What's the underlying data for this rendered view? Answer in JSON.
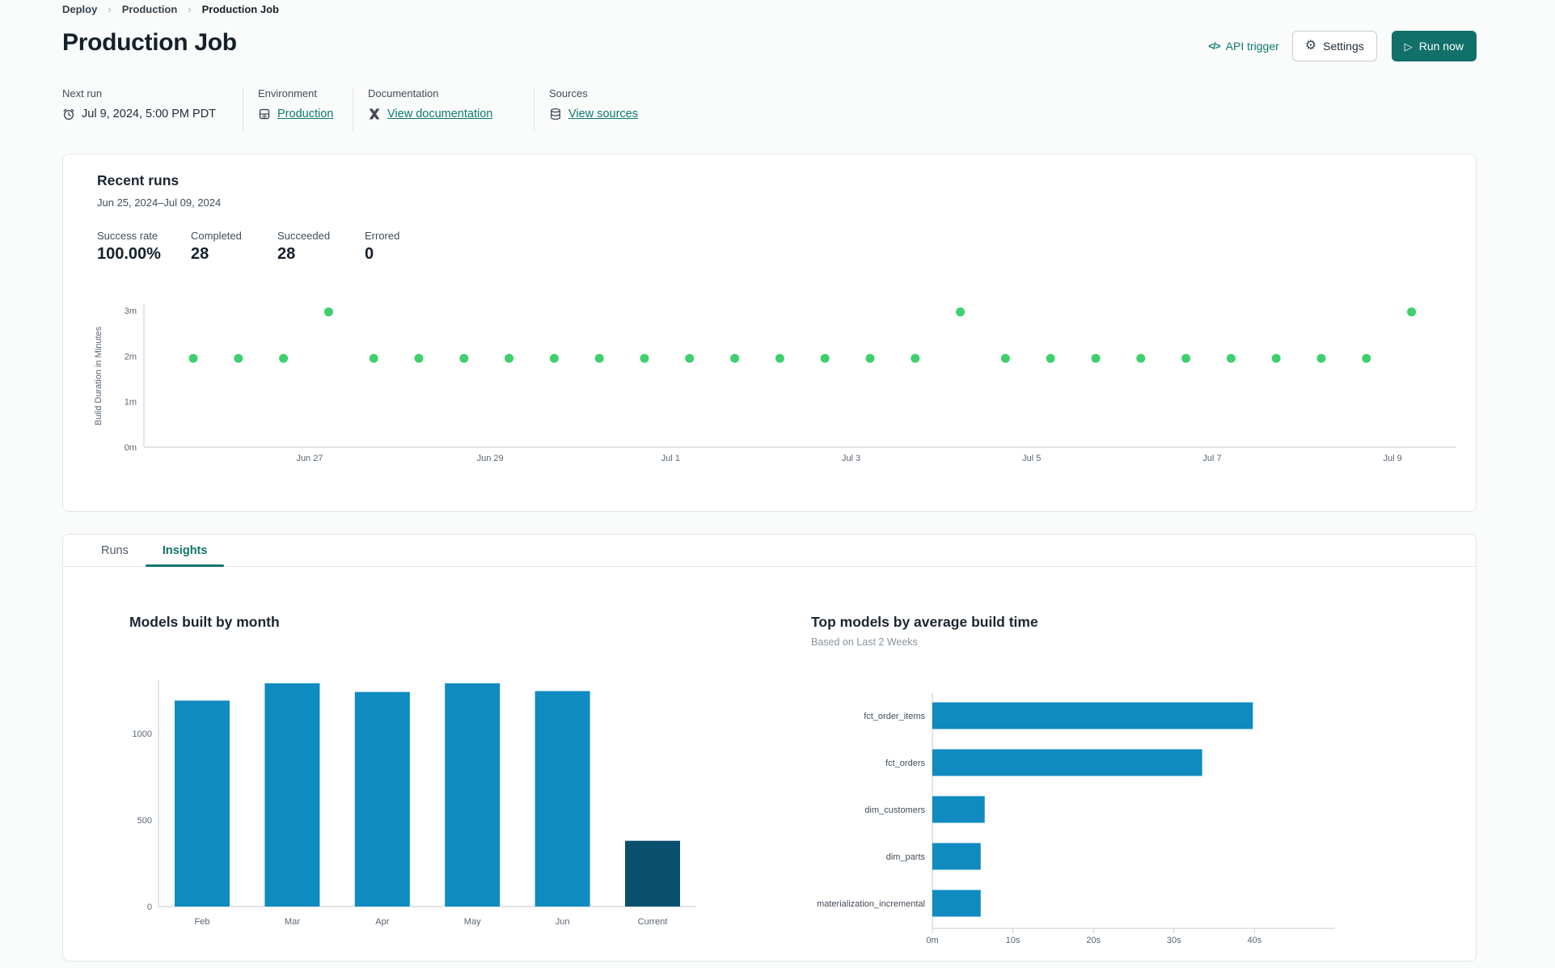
{
  "colors": {
    "accent_teal": "#12706a",
    "link_teal": "#0e7a6f",
    "dot_green": "#3ecf6e",
    "bar_blue": "#0f8bc0",
    "bar_dark": "#09506e"
  },
  "breadcrumb": {
    "items": [
      "Deploy",
      "Production",
      "Production Job"
    ]
  },
  "header": {
    "title": "Production Job",
    "api_trigger_label": "API trigger",
    "api_trigger_glyph": "</>",
    "settings_label": "Settings",
    "run_now_label": "Run now",
    "play_glyph": "▷",
    "gear_glyph": "⚙"
  },
  "meta": {
    "columns": [
      {
        "label": "Next run",
        "value": "Jul 9, 2024, 5:00 PM PDT",
        "icon": "clock-icon",
        "is_link": false
      },
      {
        "label": "Environment",
        "value": "Production",
        "icon": "database-icon",
        "is_link": true
      },
      {
        "label": "Documentation",
        "value": "View documentation",
        "icon": "dbt-icon",
        "is_link": true
      },
      {
        "label": "Sources",
        "value": "View sources",
        "icon": "sources-icon",
        "is_link": true
      }
    ]
  },
  "recent_runs": {
    "title": "Recent runs",
    "date_range": "Jun 25, 2024–Jul 09, 2024",
    "stats": [
      {
        "label": "Success rate",
        "value": "100.00%"
      },
      {
        "label": "Completed",
        "value": "28"
      },
      {
        "label": "Succeeded",
        "value": "28"
      },
      {
        "label": "Errored",
        "value": "0"
      }
    ]
  },
  "tabs": [
    {
      "label": "Runs",
      "active": false
    },
    {
      "label": "Insights",
      "active": true
    }
  ],
  "insights": {
    "left_title": "Models built by month",
    "right_title": "Top models by average build time",
    "right_subtitle": "Based on Last 2 Weeks"
  },
  "chart_data": [
    {
      "id": "build-duration-scatter",
      "type": "scatter",
      "title": "Recent runs build duration",
      "ylabel": "Build Duration in Minutes",
      "point_color": "#3ecf6e",
      "ylim": [
        0,
        3.3
      ],
      "yticks": [
        {
          "v": 0,
          "label": "0m"
        },
        {
          "v": 1,
          "label": "1m"
        },
        {
          "v": 2,
          "label": "2m"
        },
        {
          "v": 3,
          "label": "3m"
        }
      ],
      "x_unit": "run index (2 runs per day, Jun 25–Jul 9 2024)",
      "xticks": [
        {
          "pos": 3.58,
          "label": "Jun 27"
        },
        {
          "pos": 7.58,
          "label": "Jun 29"
        },
        {
          "pos": 11.58,
          "label": "Jul 1"
        },
        {
          "pos": 15.58,
          "label": "Jul 3"
        },
        {
          "pos": 19.58,
          "label": "Jul 5"
        },
        {
          "pos": 23.58,
          "label": "Jul 7"
        },
        {
          "pos": 27.58,
          "label": "Jul 9"
        }
      ],
      "values": [
        1.95,
        1.95,
        1.95,
        2.97,
        1.95,
        1.95,
        1.95,
        1.95,
        1.95,
        1.95,
        1.95,
        1.95,
        1.95,
        1.95,
        1.95,
        1.95,
        1.95,
        2.97,
        1.95,
        1.95,
        1.95,
        1.95,
        1.95,
        1.95,
        1.95,
        1.95,
        1.95,
        2.97
      ]
    },
    {
      "id": "models-by-month",
      "type": "bar",
      "title": "Models built by month",
      "categories": [
        "Feb",
        "Mar",
        "Apr",
        "May",
        "Jun",
        "Current"
      ],
      "values": [
        1190,
        1290,
        1240,
        1290,
        1245,
        380
      ],
      "bar_colors": [
        "#0f8bc0",
        "#0f8bc0",
        "#0f8bc0",
        "#0f8bc0",
        "#0f8bc0",
        "#09506e"
      ],
      "yticks": [
        0,
        500,
        1000
      ],
      "ylim": [
        0,
        1400
      ],
      "xlabel": "",
      "ylabel": ""
    },
    {
      "id": "top-models-build-time",
      "type": "hbar",
      "title": "Top models by average build time",
      "subtitle": "Based on Last 2 Weeks",
      "categories": [
        "fct_order_items",
        "fct_orders",
        "dim_customers",
        "dim_parts",
        "materialization_incremental"
      ],
      "values_seconds": [
        39.8,
        33.5,
        6.5,
        6.0,
        6.0
      ],
      "bar_color": "#0f8bc0",
      "xlim": [
        0,
        44
      ],
      "xticks": [
        {
          "v": 0,
          "label": "0m"
        },
        {
          "v": 10,
          "label": "10s"
        },
        {
          "v": 20,
          "label": "20s"
        },
        {
          "v": 30,
          "label": "30s"
        },
        {
          "v": 40,
          "label": "40s"
        }
      ]
    }
  ]
}
